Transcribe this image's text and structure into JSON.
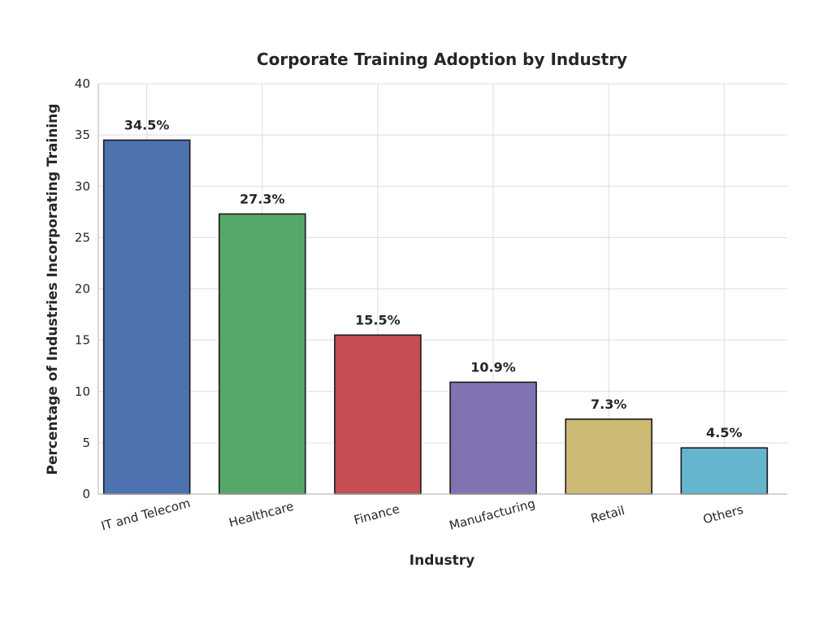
{
  "chart_data": {
    "type": "bar",
    "title": "Corporate Training Adoption by Industry",
    "xlabel": "Industry",
    "ylabel": "Percentage of Industries Incorporating Training",
    "categories": [
      "IT and Telecom",
      "Healthcare",
      "Finance",
      "Manufacturing",
      "Retail",
      "Others"
    ],
    "values": [
      34.5,
      27.3,
      15.5,
      10.9,
      7.3,
      4.5
    ],
    "data_labels": [
      "34.5%",
      "27.3%",
      "15.5%",
      "10.9%",
      "7.3%",
      "4.5%"
    ],
    "colors": [
      "#4c72b0",
      "#55a868",
      "#c44e52",
      "#8172b2",
      "#ccb974",
      "#64b5cd"
    ],
    "ylim": [
      0,
      40
    ],
    "yticks": [
      0,
      5,
      10,
      15,
      20,
      25,
      30,
      35,
      40
    ],
    "grid": true
  }
}
